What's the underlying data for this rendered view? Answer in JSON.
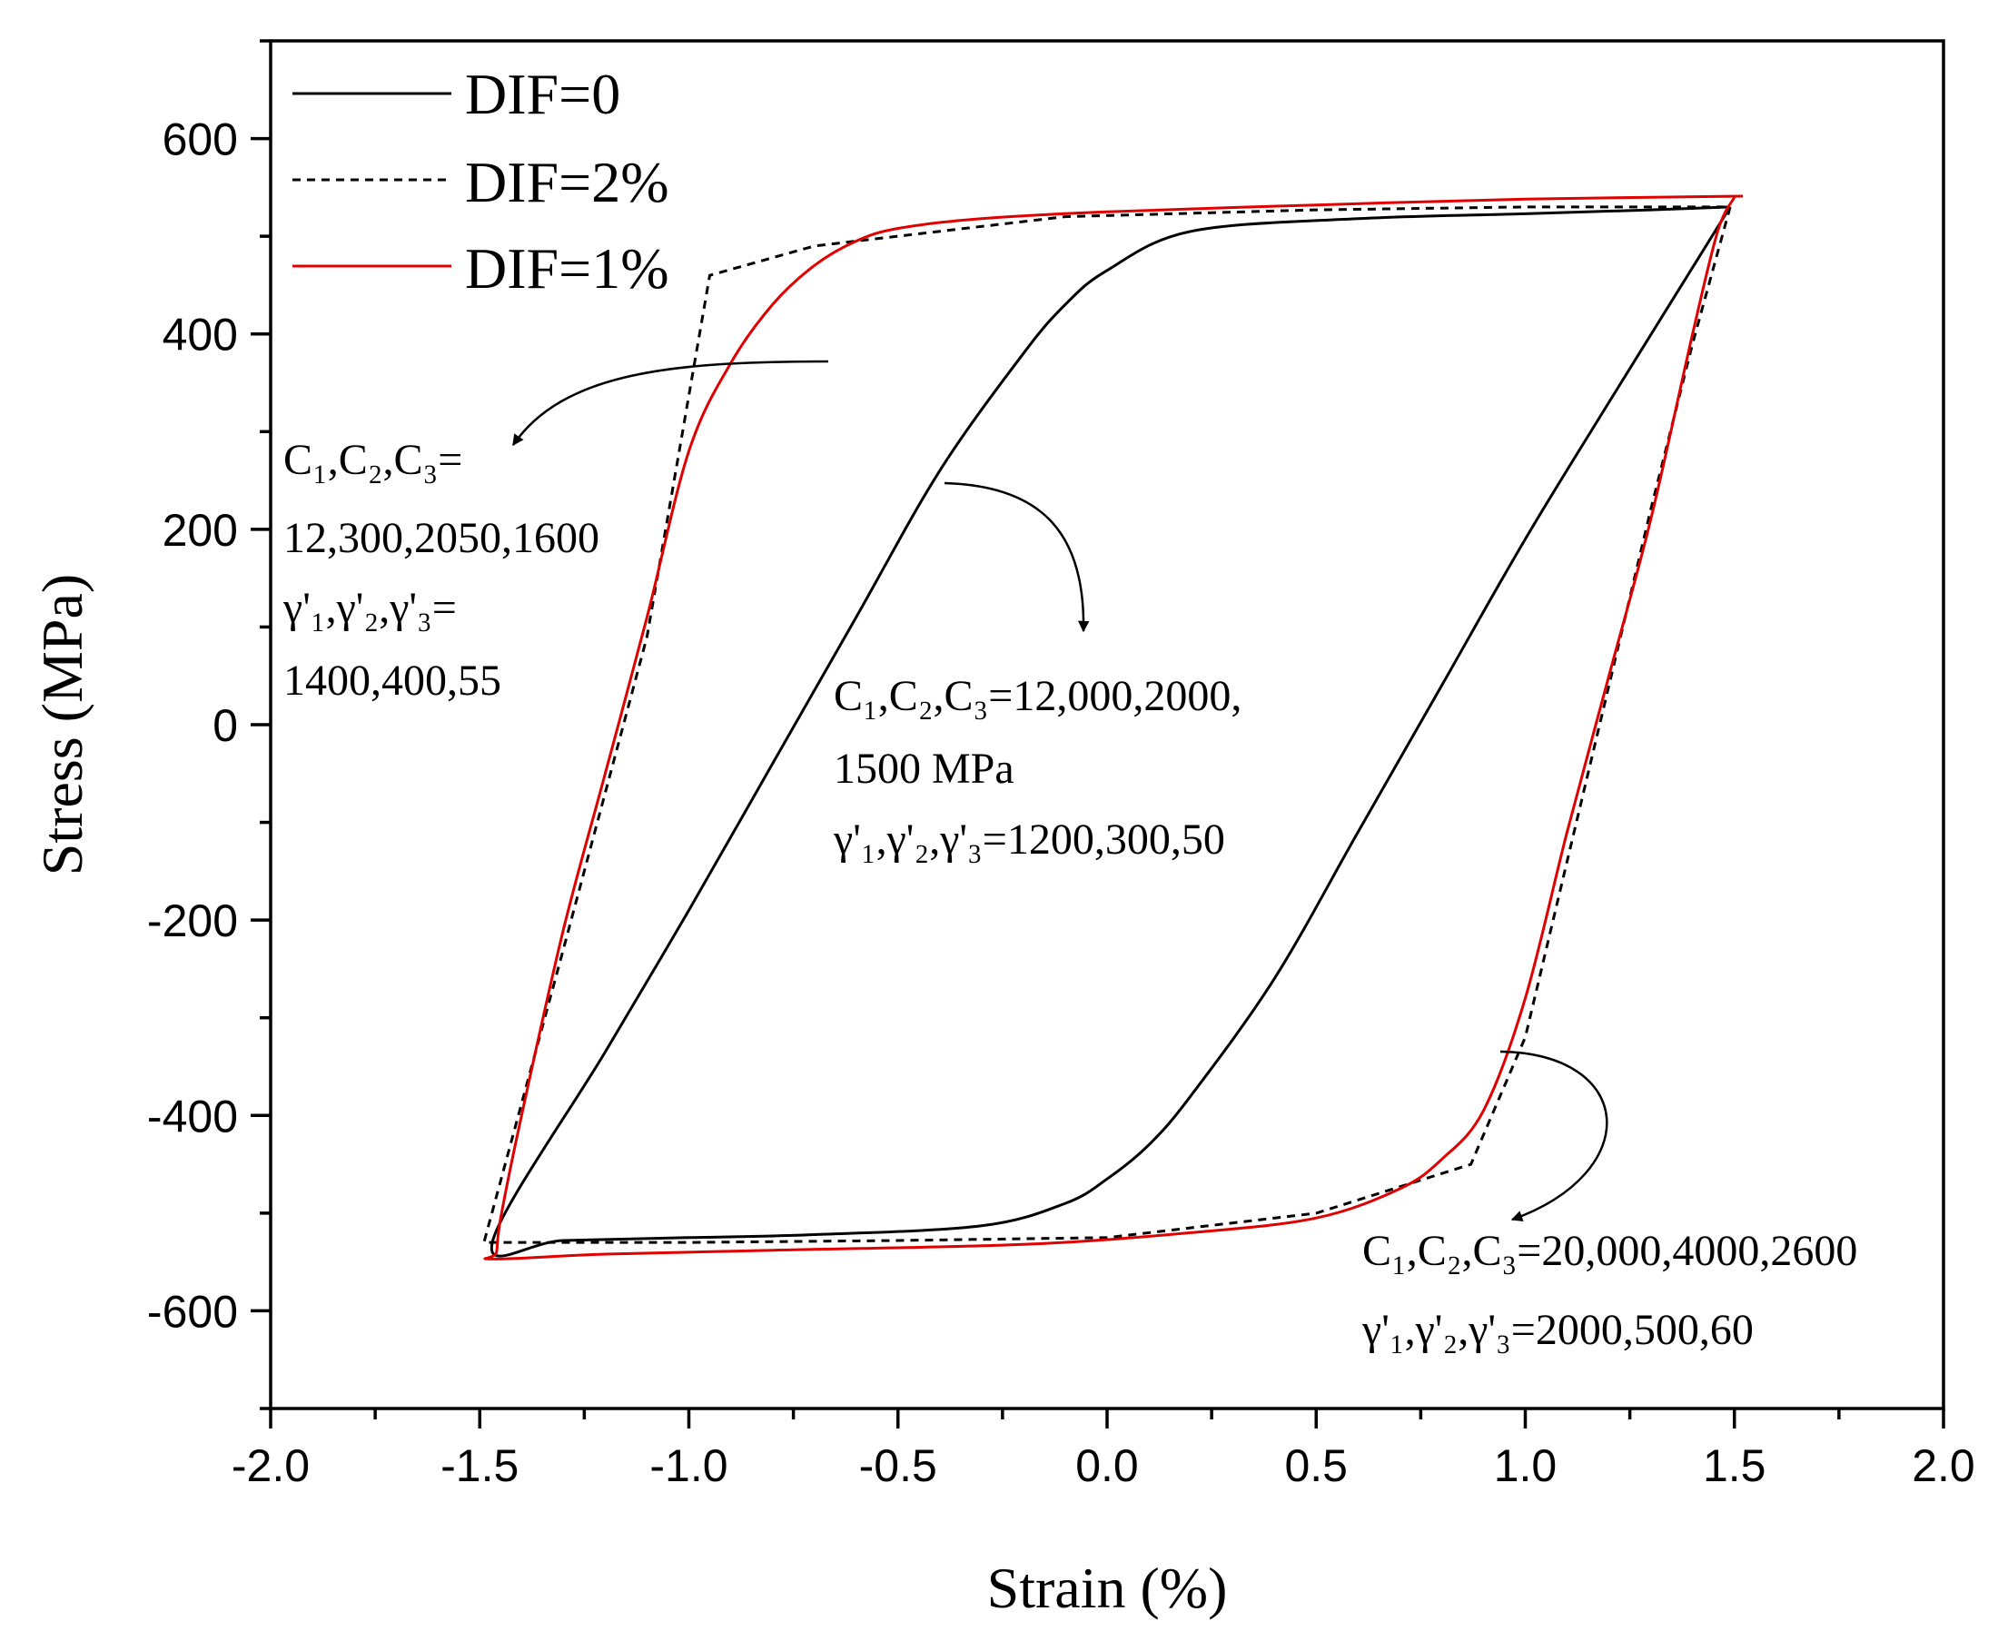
{
  "chart_data": {
    "type": "line",
    "title": "",
    "xlabel": "Strain (%)",
    "ylabel": "Stress (MPa)",
    "xlim": [
      -2.0,
      2.0
    ],
    "ylim": [
      -700,
      700
    ],
    "xticks": [
      -2.0,
      -1.5,
      -1.0,
      -0.5,
      0.0,
      0.5,
      1.0,
      1.5,
      2.0
    ],
    "xtick_labels": [
      "-2.0",
      "-1.5",
      "-1.0",
      "-0.5",
      "0.0",
      "0.5",
      "1.0",
      "1.5",
      "2.0"
    ],
    "yticks": [
      -600,
      -400,
      -200,
      0,
      200,
      400,
      600
    ],
    "ytick_labels": [
      "-600",
      "-400",
      "-200",
      "0",
      "200",
      "400",
      "600"
    ],
    "legend_position": "top-left",
    "series": [
      {
        "name": "DIF=0",
        "color": "#000000",
        "style": "solid",
        "x": [
          1.49,
          1.2,
          1.0,
          0.8,
          0.6,
          0.4,
          0.2,
          0.1,
          0.0,
          -0.1,
          -0.3,
          -0.7,
          -1.0,
          -1.3,
          -1.47,
          -1.2,
          -1.0,
          -0.8,
          -0.6,
          -0.4,
          -0.2,
          -0.1,
          0.0,
          0.2,
          0.6,
          1.0,
          1.3,
          1.49
        ],
        "y": [
          530,
          330,
          190,
          40,
          -110,
          -260,
          -380,
          -430,
          -465,
          -490,
          -513,
          -522,
          -525,
          -528,
          -530,
          -335,
          -190,
          -40,
          110,
          260,
          380,
          430,
          465,
          505,
          518,
          523,
          527,
          530
        ]
      },
      {
        "name": "DIF=2%",
        "color": "#000000",
        "style": "dashed",
        "x": [
          1.49,
          1.4,
          1.3,
          1.2,
          1.1,
          1.0,
          0.87,
          0.5,
          0.0,
          -0.5,
          -1.0,
          -1.49,
          -1.3,
          -1.1,
          -0.95,
          -0.7,
          -0.5,
          -0.1,
          0.5,
          1.0,
          1.49
        ],
        "y": [
          530,
          390,
          220,
          40,
          -140,
          -320,
          -450,
          -500,
          -525,
          -528,
          -530,
          -530,
          -230,
          90,
          460,
          490,
          500,
          520,
          527,
          530,
          530
        ]
      },
      {
        "name": "DIF=1%",
        "color": "#e00000",
        "style": "solid",
        "x": [
          1.5,
          1.46,
          1.4,
          1.3,
          1.2,
          1.1,
          1.0,
          0.9,
          0.8,
          0.7,
          0.5,
          0.2,
          -0.2,
          -0.8,
          -1.2,
          -1.47,
          -1.46,
          -1.45,
          -1.4,
          -1.3,
          -1.2,
          -1.1,
          -1.0,
          -0.9,
          -0.8,
          -0.7,
          -0.6,
          -0.5,
          -0.3,
          0.0,
          0.5,
          1.0,
          1.52
        ],
        "y": [
          540,
          505,
          400,
          210,
          50,
          -110,
          -280,
          -395,
          -445,
          -475,
          -505,
          -520,
          -532,
          -538,
          -542,
          -547,
          -540,
          -505,
          -400,
          -210,
          -50,
          110,
          280,
          370,
          430,
          470,
          495,
          508,
          518,
          525,
          532,
          538,
          541
        ]
      }
    ],
    "annotations": [
      {
        "text": "C₁,C₂,C₃=",
        "target_series": "DIF=1%"
      },
      {
        "text": "12,300,2050,1600"
      },
      {
        "text": "γ'₁,γ'₂,γ'₃="
      },
      {
        "text": "1400,400,55"
      },
      {
        "text": "C₁,C₂,C₃=12,000,2000,",
        "target_series": "DIF=0"
      },
      {
        "text": "1500 MPa"
      },
      {
        "text": "γ'₁,γ'₂,γ'₃=1200,300,50"
      },
      {
        "text": "C₁,C₂,C₃=20,000,4000,2600",
        "target_series": "DIF=2%"
      },
      {
        "text": "γ'₁,γ'₂,γ'₃=2000,500,60"
      }
    ]
  }
}
